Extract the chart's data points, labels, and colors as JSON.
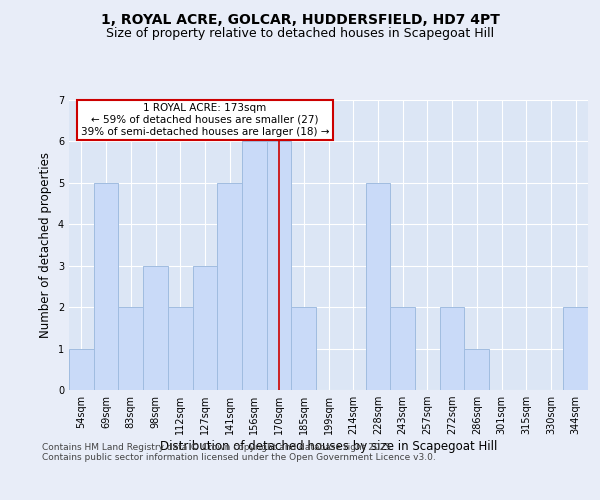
{
  "title1": "1, ROYAL ACRE, GOLCAR, HUDDERSFIELD, HD7 4PT",
  "title2": "Size of property relative to detached houses in Scapegoat Hill",
  "xlabel": "Distribution of detached houses by size in Scapegoat Hill",
  "ylabel": "Number of detached properties",
  "categories": [
    "54sqm",
    "69sqm",
    "83sqm",
    "98sqm",
    "112sqm",
    "127sqm",
    "141sqm",
    "156sqm",
    "170sqm",
    "185sqm",
    "199sqm",
    "214sqm",
    "228sqm",
    "243sqm",
    "257sqm",
    "272sqm",
    "286sqm",
    "301sqm",
    "315sqm",
    "330sqm",
    "344sqm"
  ],
  "values": [
    1,
    5,
    2,
    3,
    2,
    3,
    5,
    6,
    6,
    2,
    0,
    0,
    5,
    2,
    0,
    2,
    1,
    0,
    0,
    0,
    2
  ],
  "bar_color": "#c9daf8",
  "bar_edge_color": "#a0bce0",
  "highlight_index": 8,
  "highlight_line_color": "#cc0000",
  "annotation_text": "1 ROYAL ACRE: 173sqm\n← 59% of detached houses are smaller (27)\n39% of semi-detached houses are larger (18) →",
  "annotation_box_color": "#ffffff",
  "annotation_box_edge": "#cc0000",
  "ylim": [
    0,
    7
  ],
  "yticks": [
    0,
    1,
    2,
    3,
    4,
    5,
    6,
    7
  ],
  "background_color": "#e8edf8",
  "plot_background": "#dce6f5",
  "footer": "Contains HM Land Registry data © Crown copyright and database right 2025.\nContains public sector information licensed under the Open Government Licence v3.0.",
  "title_fontsize": 10,
  "subtitle_fontsize": 9,
  "axis_label_fontsize": 8.5,
  "tick_fontsize": 7,
  "footer_fontsize": 6.5,
  "ann_fontsize": 7.5
}
